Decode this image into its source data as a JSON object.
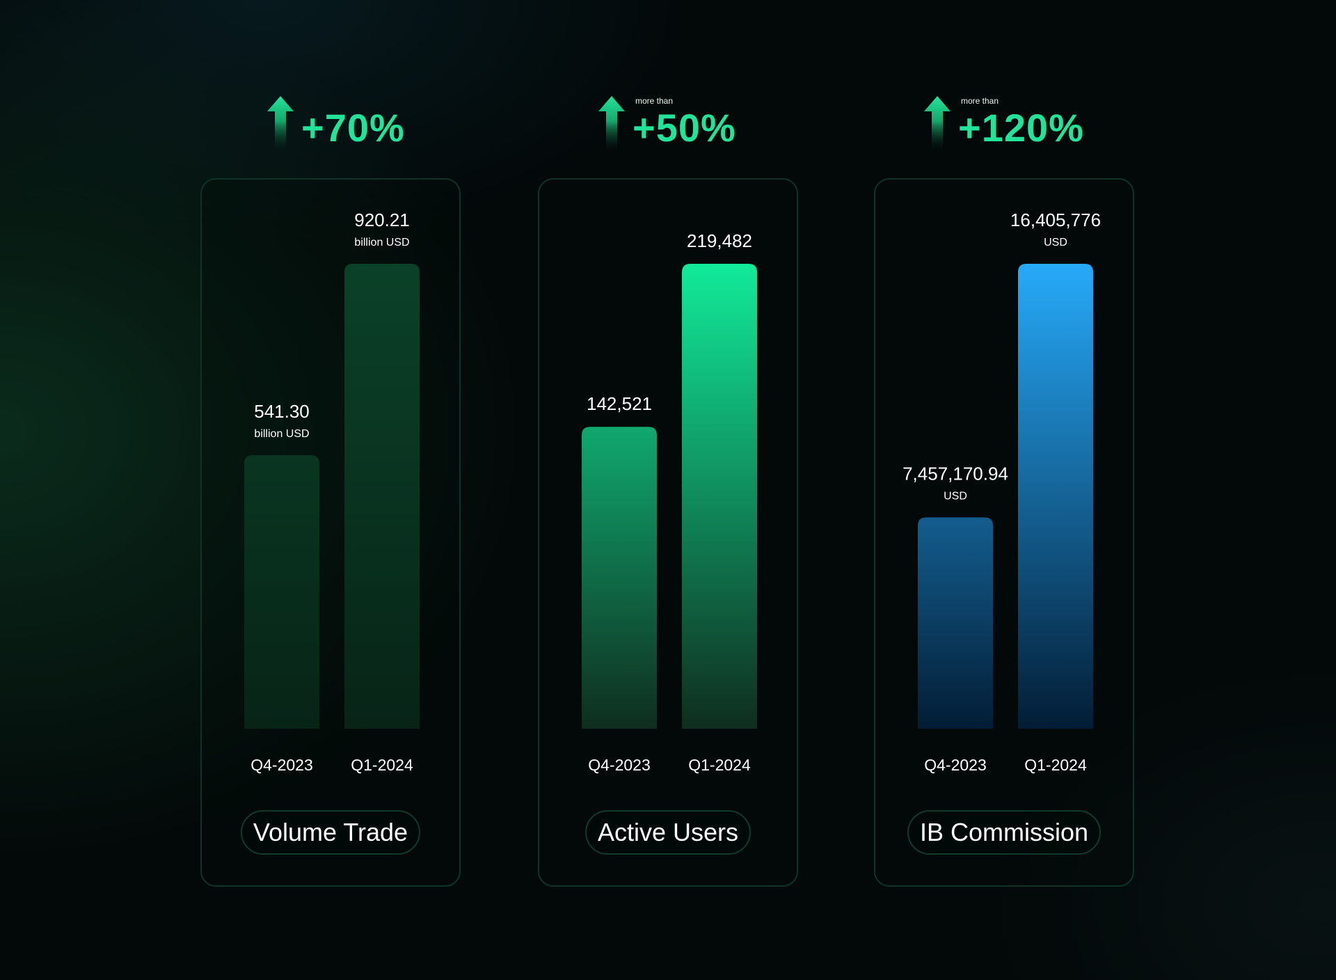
{
  "colors": {
    "background": "#030808",
    "accent_green": "#21e39a",
    "card_border": "#0f3326"
  },
  "panels": [
    {
      "growth": {
        "prefix": "",
        "value": "+70%",
        "icon": "up-arrow-icon"
      },
      "metric_label": "Volume Trade",
      "bar_top_color": "#0b4128",
      "bar_bottom_color": "#072417",
      "bars": [
        {
          "category": "Q4-2023",
          "value_text": "541.30",
          "unit": "billion USD"
        },
        {
          "category": "Q1-2024",
          "value_text": "920.21",
          "unit": "billion USD"
        }
      ]
    },
    {
      "growth": {
        "prefix": "more than",
        "value": "+50%",
        "icon": "up-arrow-icon"
      },
      "metric_label": "Active Users",
      "bar_top_color": "#12ea9a",
      "bar_bottom_color": "#0f2d1f",
      "bars": [
        {
          "category": "Q4-2023",
          "value_text": "142,521",
          "unit": ""
        },
        {
          "category": "Q1-2024",
          "value_text": "219,482",
          "unit": ""
        }
      ]
    },
    {
      "growth": {
        "prefix": "more than",
        "value": "+120%",
        "icon": "up-arrow-icon"
      },
      "metric_label": "IB Commission",
      "bar_top_color": "#27aaf9",
      "bar_bottom_color": "#031d35",
      "bars": [
        {
          "category": "Q4-2023",
          "value_text": "7,457,170.94",
          "unit": "USD"
        },
        {
          "category": "Q1-2024",
          "value_text": "16,405,776",
          "unit": "USD"
        }
      ]
    }
  ],
  "chart_data": [
    {
      "type": "bar",
      "title": "Volume Trade",
      "categories": [
        "Q4-2023",
        "Q1-2024"
      ],
      "values": [
        541.3,
        920.21
      ],
      "unit": "billion USD",
      "annotation": "+70%"
    },
    {
      "type": "bar",
      "title": "Active Users",
      "categories": [
        "Q4-2023",
        "Q1-2024"
      ],
      "values": [
        142521,
        219482
      ],
      "annotation": "more than +50%"
    },
    {
      "type": "bar",
      "title": "IB Commission",
      "categories": [
        "Q4-2023",
        "Q1-2024"
      ],
      "values": [
        7457170.94,
        16405776
      ],
      "unit": "USD",
      "annotation": "more than +120%"
    }
  ]
}
